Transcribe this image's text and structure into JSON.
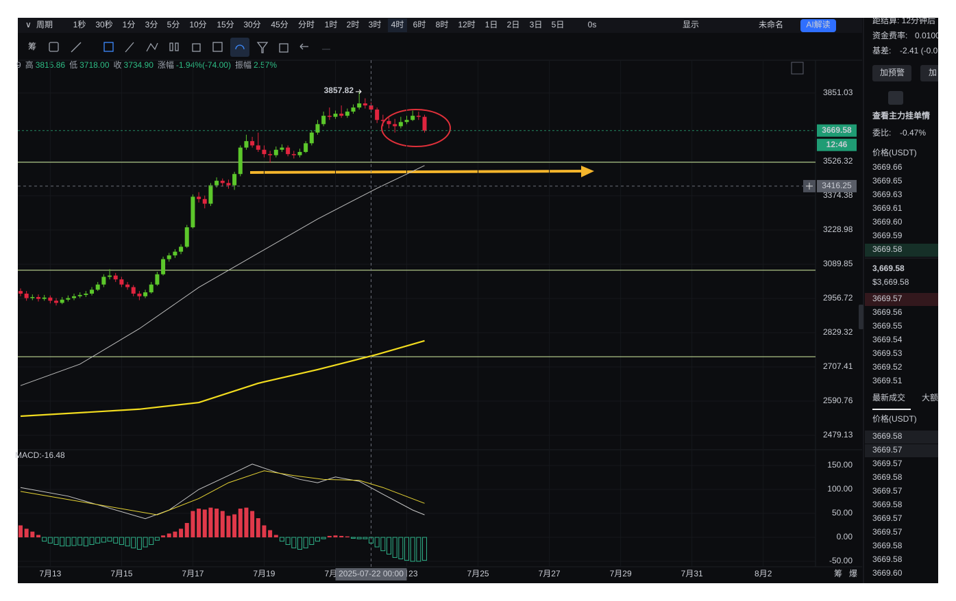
{
  "toolbar": {
    "period_label": "周期",
    "periods": [
      "1秒",
      "30秒",
      "1分",
      "3分",
      "5分",
      "10分",
      "15分",
      "30分",
      "45分",
      "分时",
      "1时",
      "2时",
      "3时",
      "4时",
      "6时",
      "8时",
      "12时",
      "1日",
      "2日",
      "3日",
      "5日"
    ],
    "active_index": 13,
    "active_color": "#3d8bff",
    "right_items": [
      "0s",
      "显示",
      "未命名",
      "AI解读"
    ]
  },
  "drawing_toolbar": {
    "label": "筹"
  },
  "info_row": [
    "9",
    "高",
    "3815.86",
    "低",
    "3718.00",
    "收",
    "3734.90",
    "涨幅",
    "-1.94%(-74.00)",
    "振幅",
    "2.57%"
  ],
  "chart_data": {
    "type": "candlestick",
    "up_color": "#5cc72b",
    "down_color": "#e0243e",
    "candles": [
      [
        2985,
        2995,
        2965,
        2975
      ],
      [
        2975,
        2985,
        2948,
        2958
      ],
      [
        2958,
        2972,
        2950,
        2962
      ],
      [
        2962,
        2972,
        2945,
        2955
      ],
      [
        2955,
        2970,
        2948,
        2960
      ],
      [
        2960,
        2968,
        2938,
        2948
      ],
      [
        2948,
        2958,
        2930,
        2940
      ],
      [
        2940,
        2962,
        2935,
        2952
      ],
      [
        2952,
        2968,
        2945,
        2958
      ],
      [
        2958,
        2975,
        2950,
        2965
      ],
      [
        2965,
        2980,
        2958,
        2970
      ],
      [
        2970,
        2985,
        2962,
        2975
      ],
      [
        2975,
        3000,
        2968,
        2990
      ],
      [
        2990,
        3020,
        2985,
        3010
      ],
      [
        3010,
        3050,
        3000,
        3040
      ],
      [
        3040,
        3070,
        3030,
        3045
      ],
      [
        3045,
        3055,
        3020,
        3030
      ],
      [
        3030,
        3040,
        3000,
        3010
      ],
      [
        3010,
        3020,
        2990,
        3000
      ],
      [
        3000,
        3008,
        2965,
        2975
      ],
      [
        2975,
        2985,
        2950,
        2965
      ],
      [
        2965,
        2990,
        2958,
        2980
      ],
      [
        2980,
        3020,
        2975,
        3010
      ],
      [
        3010,
        3060,
        3005,
        3050
      ],
      [
        3050,
        3120,
        3045,
        3110
      ],
      [
        3110,
        3135,
        3100,
        3125
      ],
      [
        3125,
        3150,
        3115,
        3140
      ],
      [
        3140,
        3170,
        3130,
        3160
      ],
      [
        3160,
        3250,
        3155,
        3240
      ],
      [
        3240,
        3380,
        3235,
        3370
      ],
      [
        3370,
        3390,
        3345,
        3360
      ],
      [
        3360,
        3375,
        3320,
        3340
      ],
      [
        3340,
        3430,
        3330,
        3420
      ],
      [
        3420,
        3455,
        3410,
        3440
      ],
      [
        3440,
        3450,
        3415,
        3430
      ],
      [
        3430,
        3445,
        3405,
        3420
      ],
      [
        3420,
        3480,
        3400,
        3470
      ],
      [
        3470,
        3600,
        3460,
        3590
      ],
      [
        3590,
        3650,
        3580,
        3620
      ],
      [
        3620,
        3640,
        3590,
        3600
      ],
      [
        3600,
        3660,
        3570,
        3580
      ],
      [
        3580,
        3600,
        3545,
        3560
      ],
      [
        3560,
        3575,
        3520,
        3555
      ],
      [
        3555,
        3595,
        3545,
        3580
      ],
      [
        3580,
        3605,
        3570,
        3590
      ],
      [
        3590,
        3600,
        3550,
        3560
      ],
      [
        3560,
        3575,
        3540,
        3555
      ],
      [
        3555,
        3585,
        3545,
        3570
      ],
      [
        3570,
        3620,
        3565,
        3610
      ],
      [
        3610,
        3670,
        3600,
        3660
      ],
      [
        3660,
        3720,
        3650,
        3700
      ],
      [
        3700,
        3760,
        3690,
        3740
      ],
      [
        3740,
        3780,
        3720,
        3735
      ],
      [
        3735,
        3765,
        3725,
        3750
      ],
      [
        3750,
        3790,
        3730,
        3740
      ],
      [
        3740,
        3775,
        3730,
        3760
      ],
      [
        3760,
        3795,
        3750,
        3780
      ],
      [
        3780,
        3857.82,
        3770,
        3800
      ],
      [
        3800,
        3825,
        3775,
        3790
      ],
      [
        3790,
        3805,
        3755,
        3770
      ],
      [
        3770,
        3780,
        3705,
        3720
      ],
      [
        3720,
        3745,
        3690,
        3715
      ],
      [
        3715,
        3730,
        3680,
        3700
      ],
      [
        3700,
        3725,
        3660,
        3690
      ],
      [
        3690,
        3735,
        3680,
        3710
      ],
      [
        3710,
        3740,
        3700,
        3720
      ],
      [
        3720,
        3765,
        3715,
        3740
      ],
      [
        3740,
        3760,
        3720,
        3735
      ],
      [
        3735,
        3745,
        3660,
        3669.58
      ]
    ],
    "xlim": [
      -0.46,
      133.8
    ],
    "xticks": [
      {
        "value": 5,
        "label": "7月13"
      },
      {
        "value": 17,
        "label": "7月15"
      },
      {
        "value": 29,
        "label": "7月17"
      },
      {
        "value": 41,
        "label": "7月19"
      },
      {
        "value": 53,
        "label": "7月21"
      },
      {
        "value": 65,
        "label": "7月23"
      },
      {
        "value": 77,
        "label": "7月25"
      },
      {
        "value": 89,
        "label": "7月27"
      },
      {
        "value": 101,
        "label": "7月29"
      },
      {
        "value": 113,
        "label": "7月31"
      },
      {
        "value": 125,
        "label": "8月2"
      }
    ],
    "ylim": [
      2438,
      4017
    ],
    "log_scale": true,
    "yticks": [
      3851.03,
      3526.32,
      3374.38,
      3228.98,
      3089.85,
      2956.72,
      2829.32,
      2707.41,
      2590.76,
      2479.13
    ],
    "grid": true,
    "moving_averages": [
      {
        "color": "#bdbdbd",
        "x": [
          0,
          10,
          20,
          30,
          40,
          50,
          60,
          68
        ],
        "values": [
          2643,
          2717,
          2844,
          2999,
          3134,
          3275,
          3407,
          3508
        ]
      },
      {
        "color": "#f2dc1f",
        "x": [
          0,
          20,
          30,
          40,
          50,
          60,
          68
        ],
        "values": [
          2541,
          2564,
          2586,
          2651,
          2698,
          2751,
          2800
        ]
      }
    ],
    "horizontal_lines": {
      "color": "#d6f2a3",
      "values": [
        3523,
        3066,
        2743
      ]
    },
    "countdown": "12:46",
    "crosshair": {
      "x": 59,
      "time_label": "2025-07-22 00:00",
      "price": 3416.25
    },
    "macd": {
      "label": "MACD:-16.48",
      "ylim": [
        -61.4,
        178.6
      ],
      "yticks": [
        {
          "value": 150,
          "label": "150.00"
        },
        {
          "value": 100,
          "label": "100.00"
        },
        {
          "value": 50,
          "label": "50.00"
        },
        {
          "value": 0,
          "label": "0.00"
        },
        {
          "value": -50,
          "label": "-50.00"
        }
      ],
      "up_color": "#e0394a",
      "down_color": "#2fb38a",
      "hist": [
        25,
        18,
        12,
        5,
        -8,
        -12,
        -15,
        -18,
        -18,
        -17,
        -16,
        -18,
        -15,
        -12,
        -10,
        -8,
        -12,
        -15,
        -18,
        -22,
        -25,
        -20,
        -15,
        -6,
        4,
        8,
        12,
        18,
        30,
        55,
        60,
        58,
        62,
        60,
        55,
        45,
        48,
        60,
        62,
        55,
        40,
        25,
        15,
        5,
        -8,
        -15,
        -22,
        -25,
        -22,
        -15,
        -8,
        -3,
        3,
        4,
        3,
        2,
        -2,
        -3,
        -3,
        -12,
        -20,
        -28,
        -35,
        -42,
        -45,
        -48,
        -50,
        -50,
        -48
      ],
      "dif": {
        "color": "#c8c8c8",
        "x": [
          0,
          8,
          21,
          25,
          30,
          35,
          39,
          43,
          47,
          50,
          53,
          57,
          61,
          66,
          68
        ],
        "values": [
          104,
          86,
          39,
          57,
          100,
          129,
          153,
          136,
          121,
          114,
          126,
          117,
          90,
          57,
          47
        ]
      },
      "dea": {
        "color": "#e8d534",
        "x": [
          0,
          8,
          23,
          30,
          35,
          41,
          46,
          51,
          57,
          61,
          68
        ],
        "values": [
          96,
          79,
          47,
          81,
          114,
          139,
          129,
          121,
          119,
          104,
          71
        ]
      }
    }
  },
  "bottom_right": [
    "筹",
    "爆"
  ],
  "sidebar": {
    "settlement": "距结算: 12分钟后",
    "funding_label": "资金费率:",
    "funding_value": "0.0100",
    "basis_label": "基差:",
    "basis_value": "-2.41 (-0.0",
    "buttons": [
      "加预警",
      "加"
    ],
    "depth_title": "查看主力挂单情",
    "ratio_label": "委比:",
    "ratio_value": "-0.47%",
    "price_header": "价格(USDT)",
    "asks": [
      "3669.66",
      "3669.65",
      "3669.63",
      "3669.61",
      "3669.60",
      "3669.59",
      "3669.58"
    ],
    "last_price": "3,669.58",
    "last_price_usd": "$3,669.58",
    "bids": [
      "3669.57",
      "3669.56",
      "3669.55",
      "3669.54",
      "3669.53",
      "3669.52",
      "3669.51"
    ],
    "trades_tabs": [
      "最新成交",
      "大额"
    ],
    "trades_header": "价格(USDT)",
    "green": "#2ebd85",
    "red": "#f0465a",
    "trades": [
      {
        "price": "3669.58",
        "color": "red"
      },
      {
        "price": "3669.57",
        "color": "green"
      },
      {
        "price": "3669.57",
        "color": "green"
      },
      {
        "price": "3669.58",
        "color": "red"
      },
      {
        "price": "3669.57",
        "color": "green"
      },
      {
        "price": "3669.58",
        "color": "red"
      },
      {
        "price": "3669.57",
        "color": "green"
      },
      {
        "price": "3669.57",
        "color": "green"
      },
      {
        "price": "3669.58",
        "color": "red"
      },
      {
        "price": "3669.58",
        "color": "green"
      },
      {
        "price": "3669.60",
        "color": "green"
      }
    ]
  }
}
